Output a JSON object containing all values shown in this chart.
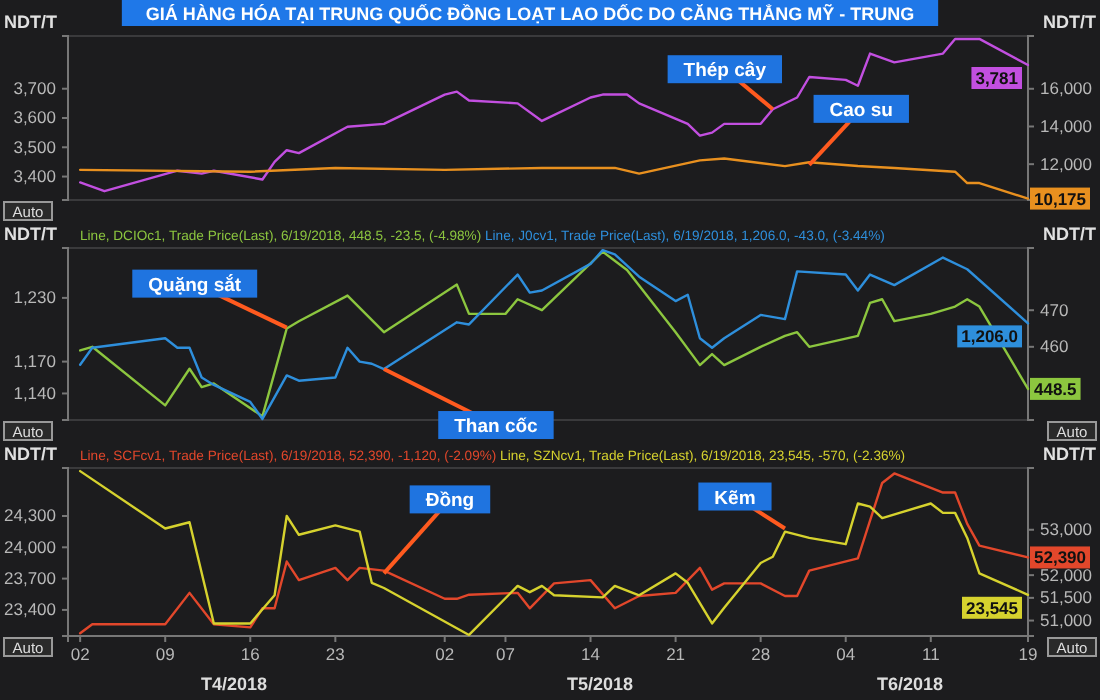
{
  "chart_data": [
    {
      "type": "line",
      "title": "GIÁ HÀNG HÓA TẠI TRUNG QUỐC ĐỒNG LOẠT LAO DỐC DO CĂNG THẲNG MỸ - TRUNG",
      "ylabel": "NDT/T",
      "y2label": "NDT/T",
      "xlim": [
        "2018-04-01",
        "2018-06-19"
      ],
      "ylim": [
        3320,
        3880
      ],
      "yticks": [
        {
          "value": 3400,
          "label": "3,400"
        },
        {
          "value": 3500,
          "label": "3,500"
        },
        {
          "value": 3600,
          "label": "3,600"
        },
        {
          "value": 3700,
          "label": "3,700"
        }
      ],
      "y2lim": [
        10100,
        18800
      ],
      "y2ticks": [
        {
          "value": 12000,
          "label": "12,000"
        },
        {
          "value": 14000,
          "label": "14,000"
        },
        {
          "value": 16000,
          "label": "16,000"
        }
      ],
      "tick_labels": "y",
      "grid": false,
      "series": [
        {
          "color": "#c24fe0",
          "x": [
            "2018-04-02",
            "2018-04-04",
            "2018-04-10",
            "2018-04-12",
            "2018-04-13",
            "2018-04-17",
            "2018-04-18",
            "2018-04-19",
            "2018-04-20",
            "2018-04-24",
            "2018-04-27",
            "2018-05-02",
            "2018-05-03",
            "2018-05-04",
            "2018-05-08",
            "2018-05-10",
            "2018-05-14",
            "2018-05-15",
            "2018-05-17",
            "2018-05-18",
            "2018-05-22",
            "2018-05-23",
            "2018-05-24",
            "2018-05-25",
            "2018-05-28",
            "2018-05-29",
            "2018-05-31",
            "2018-06-01",
            "2018-06-04",
            "2018-06-05",
            "2018-06-06",
            "2018-06-08",
            "2018-06-12",
            "2018-06-13",
            "2018-06-15",
            "2018-06-19"
          ],
          "values": [
            3380,
            3350,
            3420,
            3410,
            3420,
            3390,
            3450,
            3490,
            3480,
            3570,
            3580,
            3680,
            3690,
            3660,
            3650,
            3590,
            3670,
            3680,
            3680,
            3650,
            3580,
            3540,
            3550,
            3580,
            3580,
            3630,
            3670,
            3740,
            3730,
            3710,
            3820,
            3790,
            3820,
            3870,
            3870,
            3781
          ],
          "value_labels": [
            null,
            null,
            null,
            null,
            null,
            null,
            null,
            null,
            null,
            null,
            null,
            null,
            null,
            null,
            null,
            null,
            null,
            null,
            null,
            null,
            null,
            null,
            null,
            null,
            null,
            null,
            null,
            null,
            null,
            null,
            null,
            null,
            null,
            null,
            null,
            "3,781"
          ]
        },
        {
          "color": "#e8901f",
          "axis": "y2",
          "x": [
            "2018-04-02",
            "2018-04-16",
            "2018-04-23",
            "2018-05-02",
            "2018-05-10",
            "2018-05-16",
            "2018-05-18",
            "2018-05-23",
            "2018-05-25",
            "2018-05-30",
            "2018-06-01",
            "2018-06-05",
            "2018-06-08",
            "2018-06-13",
            "2018-06-14",
            "2018-06-15",
            "2018-06-19"
          ],
          "values": [
            11700,
            11600,
            11800,
            11700,
            11800,
            11800,
            11500,
            12200,
            12300,
            11900,
            12100,
            11900,
            11800,
            11600,
            11000,
            11000,
            10175
          ],
          "value_labels": [
            null,
            null,
            null,
            null,
            null,
            null,
            null,
            null,
            null,
            null,
            null,
            null,
            null,
            null,
            null,
            null,
            "10,175"
          ]
        }
      ],
      "annotations": [
        "Auto",
        {
          "text": "Thép cây",
          "x": "2018-05-29",
          "y": 3630
        },
        {
          "text": "Cao su",
          "x": "2018-06-01",
          "y": 3440
        }
      ]
    },
    {
      "type": "line",
      "ylabel": "NDT/T",
      "y2label": "NDT/T",
      "xlim": [
        "2018-04-01",
        "2018-06-19"
      ],
      "ylim": [
        1115,
        1277
      ],
      "yticks": [
        {
          "value": 1140,
          "label": "1,140"
        },
        {
          "value": 1170,
          "label": "1,170"
        },
        {
          "value": 1230,
          "label": "1,230"
        }
      ],
      "y2lim": [
        440,
        487
      ],
      "y2ticks": [
        460,
        470
      ],
      "tick_labels": "y",
      "grid": false,
      "legend": "top",
      "series": [
        {
          "name": "Line, DCIOc1, Trade Price(Last), 6/19/2018, 448.5, -23.5, (-4.98%)",
          "color": "#8cc63f",
          "axis": "y2",
          "x": [
            "2018-04-02",
            "2018-04-03",
            "2018-04-09",
            "2018-04-11",
            "2018-04-12",
            "2018-04-13",
            "2018-04-17",
            "2018-04-19",
            "2018-04-20",
            "2018-04-24",
            "2018-04-27",
            "2018-05-03",
            "2018-05-04",
            "2018-05-07",
            "2018-05-08",
            "2018-05-10",
            "2018-05-15",
            "2018-05-17",
            "2018-05-21",
            "2018-05-23",
            "2018-05-24",
            "2018-05-25",
            "2018-05-28",
            "2018-05-30",
            "2018-05-31",
            "2018-06-01",
            "2018-06-05",
            "2018-06-06",
            "2018-06-07",
            "2018-06-08",
            "2018-06-11",
            "2018-06-13",
            "2018-06-14",
            "2018-06-15",
            "2018-06-19"
          ],
          "values": [
            459,
            460,
            444,
            454,
            449,
            450,
            441,
            465,
            467,
            474,
            464,
            477,
            469,
            469,
            473,
            470,
            486,
            481,
            464,
            455,
            458,
            455,
            460,
            463,
            464,
            460,
            463,
            472,
            473,
            467,
            469,
            471,
            473,
            471,
            448.5
          ],
          "value_labels": [
            null,
            null,
            null,
            null,
            null,
            null,
            null,
            null,
            null,
            null,
            null,
            null,
            null,
            null,
            null,
            null,
            null,
            null,
            null,
            null,
            null,
            null,
            null,
            null,
            null,
            null,
            null,
            null,
            null,
            null,
            null,
            null,
            null,
            null,
            "448.5"
          ]
        },
        {
          "name": "Line, J0cv1, Trade Price(Last), 6/19/2018, 1,206.0, -43.0, (-3.44%)",
          "color": "#2e8fdc",
          "x": [
            "2018-04-02",
            "2018-04-03",
            "2018-04-09",
            "2018-04-10",
            "2018-04-11",
            "2018-04-12",
            "2018-04-13",
            "2018-04-16",
            "2018-04-17",
            "2018-04-19",
            "2018-04-20",
            "2018-04-23",
            "2018-04-24",
            "2018-04-25",
            "2018-04-26",
            "2018-04-27",
            "2018-05-03",
            "2018-05-04",
            "2018-05-08",
            "2018-05-09",
            "2018-05-10",
            "2018-05-14",
            "2018-05-15",
            "2018-05-16",
            "2018-05-18",
            "2018-05-21",
            "2018-05-22",
            "2018-05-23",
            "2018-05-24",
            "2018-05-25",
            "2018-05-28",
            "2018-05-30",
            "2018-05-31",
            "2018-06-04",
            "2018-06-05",
            "2018-06-06",
            "2018-06-08",
            "2018-06-12",
            "2018-06-14",
            "2018-06-19"
          ],
          "values": [
            1167,
            1183,
            1192,
            1183,
            1183,
            1155,
            1148,
            1132,
            1116,
            1157,
            1152,
            1155,
            1183,
            1170,
            1168,
            1163,
            1207,
            1205,
            1252,
            1235,
            1237,
            1262,
            1275,
            1271,
            1250,
            1227,
            1233,
            1192,
            1183,
            1192,
            1214,
            1210,
            1255,
            1252,
            1237,
            1252,
            1242,
            1268,
            1257,
            1206
          ],
          "value_labels": [
            null,
            null,
            null,
            null,
            null,
            null,
            null,
            null,
            null,
            null,
            null,
            null,
            null,
            null,
            null,
            null,
            null,
            null,
            null,
            null,
            null,
            null,
            null,
            null,
            null,
            null,
            null,
            null,
            null,
            null,
            null,
            null,
            null,
            null,
            null,
            null,
            null,
            null,
            null,
            "1,206.0"
          ]
        }
      ],
      "annotations": [
        "Auto",
        "Auto",
        {
          "text": "Quặng sắt",
          "x": "2018-04-19",
          "y": 1202
        },
        {
          "text": "Than cốc",
          "x": "2018-04-27",
          "y": 1163
        }
      ]
    },
    {
      "type": "line",
      "ylabel": "NDT/T",
      "y2label": "NDT/T",
      "xlim": [
        "2018-04-01",
        "2018-06-19"
      ],
      "xticks": [
        {
          "value": "2018-04-02",
          "label": "02"
        },
        {
          "value": "2018-04-09",
          "label": "09"
        },
        {
          "value": "2018-04-16",
          "label": "16"
        },
        {
          "value": "2018-04-23",
          "label": "23"
        },
        {
          "value": "2018-05-02",
          "label": "02"
        },
        {
          "value": "2018-05-07",
          "label": "07"
        },
        {
          "value": "2018-05-14",
          "label": "14"
        },
        {
          "value": "2018-05-21",
          "label": "21"
        },
        {
          "value": "2018-05-28",
          "label": "28"
        },
        {
          "value": "2018-06-04",
          "label": "04"
        },
        {
          "value": "2018-06-11",
          "label": "11"
        },
        {
          "value": "2018-06-19",
          "label": "19"
        }
      ],
      "ylim": [
        23150,
        24760
      ],
      "yticks": [
        {
          "value": 23400,
          "label": "23,400"
        },
        {
          "value": 23700,
          "label": "23,700"
        },
        {
          "value": 24000,
          "label": "24,000"
        },
        {
          "value": 24300,
          "label": "24,300"
        }
      ],
      "y2lim": [
        50660,
        54360
      ],
      "y2ticks": [
        {
          "value": 51000,
          "label": "51,000"
        },
        {
          "value": 51500,
          "label": "51,500"
        },
        {
          "value": 52000,
          "label": "52,000"
        },
        {
          "value": 53000,
          "label": "53,000"
        }
      ],
      "grid": false,
      "legend": "top",
      "series": [
        {
          "name": "Line, SCFcv1, Trade Price(Last), 6/19/2018, 52,390, -1,120, (-2.09%)",
          "color": "#e2472b",
          "axis": "y2",
          "x": [
            "2018-04-02",
            "2018-04-03",
            "2018-04-09",
            "2018-04-11",
            "2018-04-13",
            "2018-04-16",
            "2018-04-17",
            "2018-04-18",
            "2018-04-19",
            "2018-04-20",
            "2018-04-23",
            "2018-04-24",
            "2018-04-25",
            "2018-04-27",
            "2018-05-02",
            "2018-05-03",
            "2018-05-04",
            "2018-05-08",
            "2018-05-09",
            "2018-05-11",
            "2018-05-14",
            "2018-05-16",
            "2018-05-18",
            "2018-05-21",
            "2018-05-23",
            "2018-05-24",
            "2018-05-25",
            "2018-05-28",
            "2018-05-30",
            "2018-05-31",
            "2018-06-01",
            "2018-06-05",
            "2018-06-06",
            "2018-06-07",
            "2018-06-08",
            "2018-06-12",
            "2018-06-13",
            "2018-06-14",
            "2018-06-15",
            "2018-06-19"
          ],
          "values": [
            50720,
            50920,
            50920,
            51610,
            50920,
            50850,
            51270,
            51270,
            52300,
            51890,
            52160,
            51890,
            52160,
            52100,
            51480,
            51480,
            51570,
            51610,
            51270,
            51820,
            51890,
            51270,
            51540,
            51610,
            52160,
            51680,
            51820,
            51820,
            51540,
            51540,
            52100,
            52370,
            53200,
            54030,
            54240,
            53820,
            53820,
            53130,
            52650,
            52390
          ],
          "value_labels": [
            null,
            null,
            null,
            null,
            null,
            null,
            null,
            null,
            null,
            null,
            null,
            null,
            null,
            null,
            null,
            null,
            null,
            null,
            null,
            null,
            null,
            null,
            null,
            null,
            null,
            null,
            null,
            null,
            null,
            null,
            null,
            null,
            null,
            null,
            null,
            null,
            null,
            null,
            null,
            "52,390"
          ]
        },
        {
          "name": "Line, SZNcv1, Trade Price(Last), 6/19/2018, 23,545, -570, (-2.36%)",
          "color": "#d6d22e",
          "x": [
            "2018-04-02",
            "2018-04-09",
            "2018-04-11",
            "2018-04-13",
            "2018-04-16",
            "2018-04-18",
            "2018-04-19",
            "2018-04-20",
            "2018-04-23",
            "2018-04-25",
            "2018-04-26",
            "2018-04-27",
            "2018-05-04",
            "2018-05-08",
            "2018-05-09",
            "2018-05-10",
            "2018-05-11",
            "2018-05-15",
            "2018-05-16",
            "2018-05-18",
            "2018-05-21",
            "2018-05-22",
            "2018-05-24",
            "2018-05-25",
            "2018-05-28",
            "2018-05-29",
            "2018-05-30",
            "2018-06-01",
            "2018-06-04",
            "2018-06-05",
            "2018-06-06",
            "2018-06-07",
            "2018-06-11",
            "2018-06-12",
            "2018-06-13",
            "2018-06-14",
            "2018-06-15",
            "2018-06-19"
          ],
          "values": [
            24730,
            24180,
            24240,
            23270,
            23270,
            23540,
            24300,
            24120,
            24210,
            24150,
            23660,
            23610,
            23160,
            23630,
            23570,
            23630,
            23540,
            23520,
            23630,
            23540,
            23750,
            23660,
            23270,
            23420,
            23850,
            23910,
            24150,
            24090,
            24030,
            24420,
            24390,
            24280,
            24420,
            24330,
            24330,
            24090,
            23750,
            23545
          ],
          "value_labels": [
            null,
            null,
            null,
            null,
            null,
            null,
            null,
            null,
            null,
            null,
            null,
            null,
            null,
            null,
            null,
            null,
            null,
            null,
            null,
            null,
            null,
            null,
            null,
            null,
            null,
            null,
            null,
            null,
            null,
            null,
            null,
            null,
            null,
            null,
            null,
            null,
            null,
            "23,545"
          ]
        }
      ],
      "annotations": [
        "Auto",
        "Auto",
        {
          "text": "Đồng",
          "x": "2018-04-27",
          "y": 23750
        },
        {
          "text": "Kẽm",
          "x": "2018-05-30",
          "y": 24180
        },
        "T4/2018",
        "T5/2018",
        "T6/2018"
      ]
    }
  ]
}
